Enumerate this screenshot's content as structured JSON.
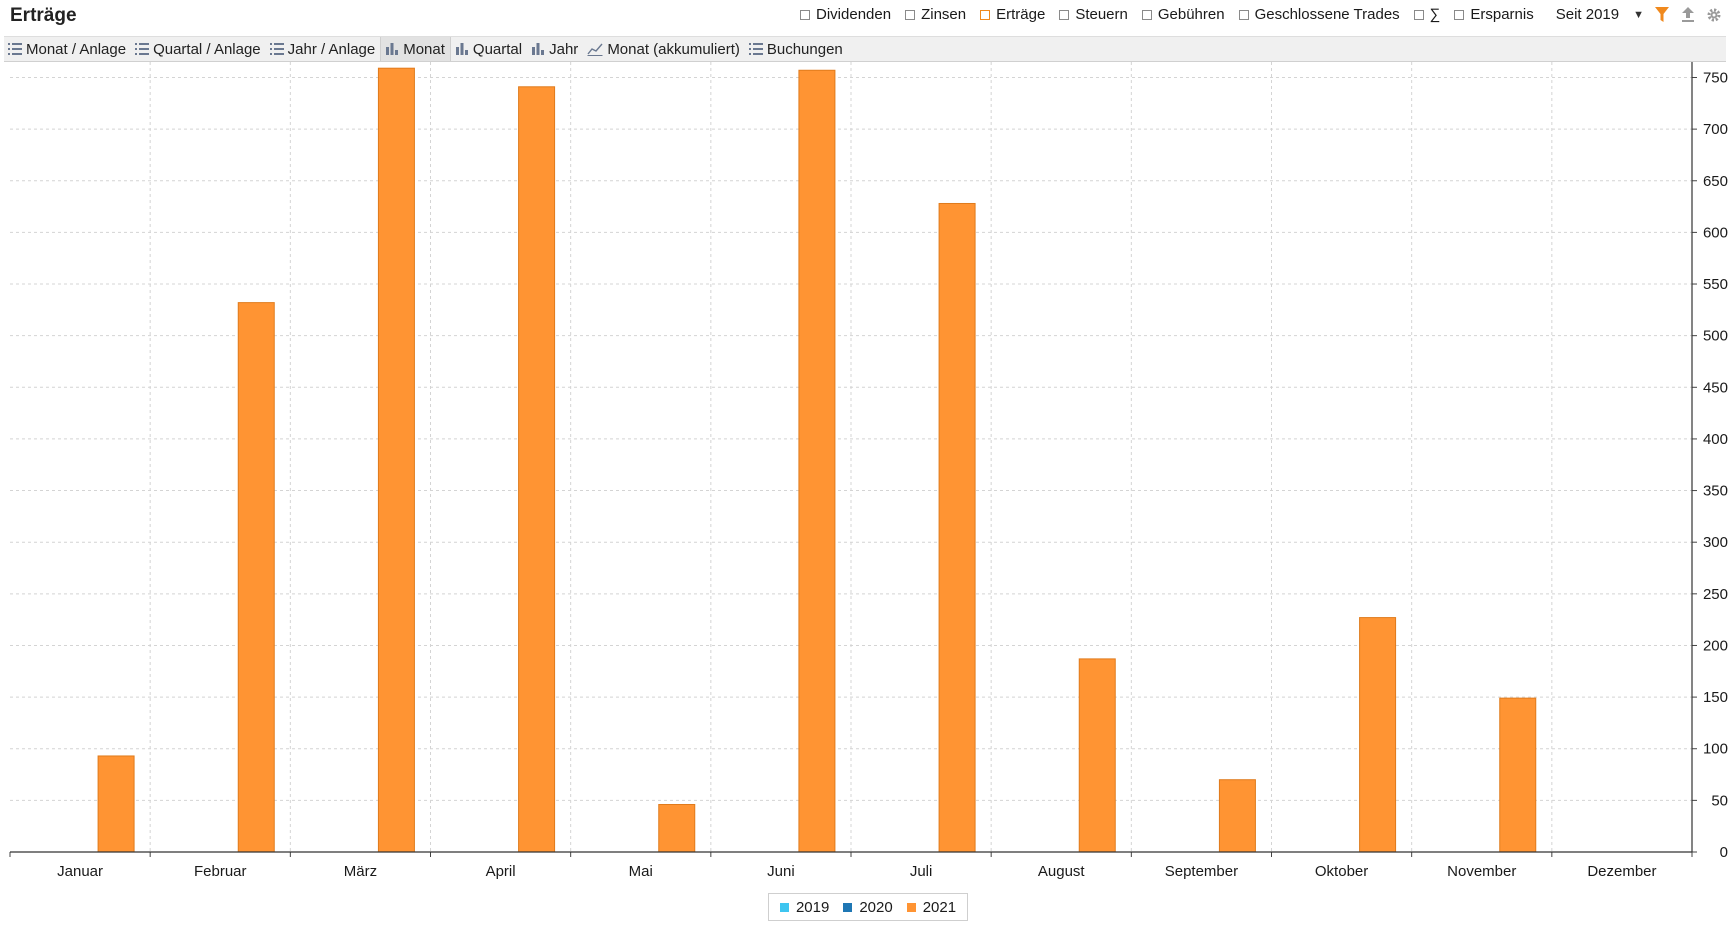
{
  "header": {
    "title": "Erträge",
    "filters": [
      {
        "label": "Dividenden",
        "checked": false
      },
      {
        "label": "Zinsen",
        "checked": false
      },
      {
        "label": "Erträge",
        "checked": true
      },
      {
        "label": "Steuern",
        "checked": false
      },
      {
        "label": "Gebühren",
        "checked": false
      },
      {
        "label": "Geschlossene Trades",
        "checked": false
      },
      {
        "label": "∑",
        "checked": false
      },
      {
        "label": "Ersparnis",
        "checked": false
      }
    ],
    "period": "Seit 2019",
    "icons": [
      "filter-icon",
      "export-icon",
      "settings-icon"
    ],
    "accent": "#f0891d"
  },
  "tabs": [
    {
      "label": "Monat / Anlage",
      "icon": "list-icon",
      "active": false
    },
    {
      "label": "Quartal / Anlage",
      "icon": "list-icon",
      "active": false
    },
    {
      "label": "Jahr / Anlage",
      "icon": "list-icon",
      "active": false
    },
    {
      "label": "Monat",
      "icon": "bar-chart-icon",
      "active": true
    },
    {
      "label": "Quartal",
      "icon": "bar-chart-icon",
      "active": false
    },
    {
      "label": "Jahr",
      "icon": "bar-chart-icon",
      "active": false
    },
    {
      "label": "Monat (akkumuliert)",
      "icon": "line-chart-icon",
      "active": false
    },
    {
      "label": "Buchungen",
      "icon": "list-icon",
      "active": false
    }
  ],
  "chart_data": {
    "type": "bar",
    "categories": [
      "Januar",
      "Februar",
      "März",
      "April",
      "Mai",
      "Juni",
      "Juli",
      "August",
      "September",
      "Oktober",
      "November",
      "Dezember"
    ],
    "series": [
      {
        "name": "2019",
        "color": "#3ec5f0",
        "values": [
          0,
          0,
          0,
          0,
          0,
          0,
          0,
          0,
          0,
          0,
          0,
          0
        ]
      },
      {
        "name": "2020",
        "color": "#1f77b4",
        "values": [
          0,
          0,
          0,
          0,
          0,
          0,
          0,
          0,
          0,
          0,
          0,
          0
        ]
      },
      {
        "name": "2021",
        "color": "#ff9433",
        "values": [
          93,
          532,
          759,
          741,
          46,
          757,
          628,
          187,
          70,
          227,
          149,
          0
        ]
      }
    ],
    "yticks": [
      "0",
      "50",
      "100",
      "150",
      "200",
      "250",
      "300",
      "350",
      "400",
      "450",
      "500",
      "550",
      "600",
      "650",
      "700",
      "750"
    ],
    "ylim": [
      0,
      765
    ],
    "yaxis_side": "right",
    "grid": true,
    "legend_position": "bottom-center"
  }
}
